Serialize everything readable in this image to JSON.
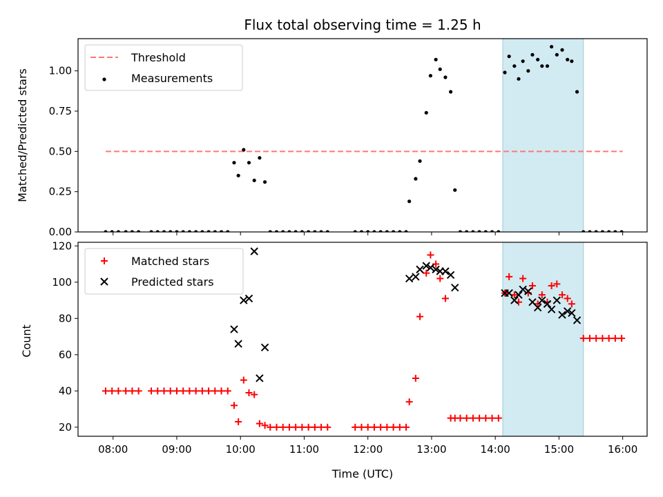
{
  "title": "Flux total observing time = 1.25 h",
  "xlabel": "Time (UTC)",
  "x_ticks": [
    "08:00",
    "09:00",
    "10:00",
    "11:00",
    "12:00",
    "13:00",
    "14:00",
    "15:00",
    "16:00"
  ],
  "colors": {
    "threshold": "#ff7777",
    "measurement": "#000000",
    "matched": "#ff0000",
    "predicted": "#000000",
    "highlight": "#add8e6"
  },
  "chart_data": [
    {
      "type": "scatter",
      "ylabel": "Matched/Predicted stars",
      "xlim": [
        "07:27",
        "16:23"
      ],
      "ylim": [
        0,
        1.2
      ],
      "y_ticks": [
        "0.00",
        "0.25",
        "0.50",
        "0.75",
        "1.00"
      ],
      "highlight_span": [
        "14:07",
        "15:23"
      ],
      "legend": {
        "position": "top-left",
        "entries": [
          "Threshold",
          "Measurements"
        ]
      },
      "series": [
        {
          "name": "Threshold",
          "kind": "dashed-line",
          "x": [
            "07:53",
            "16:00"
          ],
          "y": [
            0.5,
            0.5
          ]
        },
        {
          "name": "Measurements",
          "kind": "dots",
          "points": [
            [
              "07:53",
              0
            ],
            [
              "07:59",
              0
            ],
            [
              "08:05",
              0
            ],
            [
              "08:12",
              0
            ],
            [
              "08:18",
              0
            ],
            [
              "08:24",
              0
            ],
            [
              "08:36",
              0
            ],
            [
              "08:42",
              0
            ],
            [
              "08:48",
              0
            ],
            [
              "08:54",
              0
            ],
            [
              "09:00",
              0
            ],
            [
              "09:06",
              0
            ],
            [
              "09:12",
              0
            ],
            [
              "09:18",
              0
            ],
            [
              "09:24",
              0
            ],
            [
              "09:30",
              0
            ],
            [
              "09:36",
              0
            ],
            [
              "09:42",
              0
            ],
            [
              "09:48",
              0
            ],
            [
              "09:54",
              0.43
            ],
            [
              "09:58",
              0.35
            ],
            [
              "10:03",
              0.51
            ],
            [
              "10:08",
              0.43
            ],
            [
              "10:13",
              0.32
            ],
            [
              "10:18",
              0.46
            ],
            [
              "10:23",
              0.31
            ],
            [
              "10:28",
              0
            ],
            [
              "10:34",
              0
            ],
            [
              "10:40",
              0
            ],
            [
              "10:46",
              0
            ],
            [
              "10:52",
              0
            ],
            [
              "10:58",
              0
            ],
            [
              "11:04",
              0
            ],
            [
              "11:10",
              0
            ],
            [
              "11:16",
              0
            ],
            [
              "11:22",
              0
            ],
            [
              "11:48",
              0
            ],
            [
              "11:54",
              0
            ],
            [
              "12:00",
              0
            ],
            [
              "12:06",
              0
            ],
            [
              "12:12",
              0
            ],
            [
              "12:18",
              0
            ],
            [
              "12:24",
              0
            ],
            [
              "12:30",
              0
            ],
            [
              "12:36",
              0
            ],
            [
              "12:39",
              0.19
            ],
            [
              "12:45",
              0.33
            ],
            [
              "12:49",
              0.44
            ],
            [
              "12:55",
              0.74
            ],
            [
              "12:59",
              0.97
            ],
            [
              "13:04",
              1.07
            ],
            [
              "13:08",
              1.01
            ],
            [
              "13:13",
              0.96
            ],
            [
              "13:18",
              0.87
            ],
            [
              "13:22",
              0.26
            ],
            [
              "13:27",
              0
            ],
            [
              "13:33",
              0
            ],
            [
              "13:39",
              0
            ],
            [
              "13:45",
              0
            ],
            [
              "13:51",
              0
            ],
            [
              "13:57",
              0
            ],
            [
              "14:03",
              0
            ],
            [
              "14:09",
              0.99
            ],
            [
              "14:13",
              1.09
            ],
            [
              "14:18",
              1.03
            ],
            [
              "14:22",
              0.95
            ],
            [
              "14:26",
              1.06
            ],
            [
              "14:31",
              1.0
            ],
            [
              "14:35",
              1.1
            ],
            [
              "14:40",
              1.07
            ],
            [
              "14:44",
              1.03
            ],
            [
              "14:49",
              1.03
            ],
            [
              "14:53",
              1.15
            ],
            [
              "14:58",
              1.1
            ],
            [
              "15:03",
              1.13
            ],
            [
              "15:08",
              1.07
            ],
            [
              "15:12",
              1.06
            ],
            [
              "15:17",
              0.87
            ],
            [
              "15:23",
              0
            ],
            [
              "15:29",
              0
            ],
            [
              "15:35",
              0
            ],
            [
              "15:41",
              0
            ],
            [
              "15:47",
              0
            ],
            [
              "15:53",
              0
            ],
            [
              "15:59",
              0
            ]
          ]
        }
      ]
    },
    {
      "type": "scatter",
      "ylabel": "Count",
      "xlim": [
        "07:27",
        "16:23"
      ],
      "ylim": [
        15,
        122
      ],
      "y_ticks": [
        "20",
        "40",
        "60",
        "80",
        "100",
        "120"
      ],
      "highlight_span": [
        "14:07",
        "15:23"
      ],
      "legend": {
        "position": "top-left",
        "entries": [
          "Matched stars",
          "Predicted stars"
        ]
      },
      "series": [
        {
          "name": "Matched stars",
          "kind": "plus",
          "points": [
            [
              "07:53",
              40
            ],
            [
              "07:59",
              40
            ],
            [
              "08:05",
              40
            ],
            [
              "08:12",
              40
            ],
            [
              "08:18",
              40
            ],
            [
              "08:24",
              40
            ],
            [
              "08:36",
              40
            ],
            [
              "08:42",
              40
            ],
            [
              "08:48",
              40
            ],
            [
              "08:54",
              40
            ],
            [
              "09:00",
              40
            ],
            [
              "09:06",
              40
            ],
            [
              "09:12",
              40
            ],
            [
              "09:18",
              40
            ],
            [
              "09:24",
              40
            ],
            [
              "09:30",
              40
            ],
            [
              "09:36",
              40
            ],
            [
              "09:42",
              40
            ],
            [
              "09:48",
              40
            ],
            [
              "09:54",
              32
            ],
            [
              "09:58",
              23
            ],
            [
              "10:03",
              46
            ],
            [
              "10:08",
              39
            ],
            [
              "10:13",
              38
            ],
            [
              "10:18",
              22
            ],
            [
              "10:23",
              21
            ],
            [
              "10:28",
              20
            ],
            [
              "10:34",
              20
            ],
            [
              "10:40",
              20
            ],
            [
              "10:46",
              20
            ],
            [
              "10:52",
              20
            ],
            [
              "10:58",
              20
            ],
            [
              "11:04",
              20
            ],
            [
              "11:10",
              20
            ],
            [
              "11:16",
              20
            ],
            [
              "11:22",
              20
            ],
            [
              "11:48",
              20
            ],
            [
              "11:54",
              20
            ],
            [
              "12:00",
              20
            ],
            [
              "12:06",
              20
            ],
            [
              "12:12",
              20
            ],
            [
              "12:18",
              20
            ],
            [
              "12:24",
              20
            ],
            [
              "12:30",
              20
            ],
            [
              "12:36",
              20
            ],
            [
              "12:39",
              34
            ],
            [
              "12:45",
              47
            ],
            [
              "12:49",
              81
            ],
            [
              "12:55",
              105
            ],
            [
              "12:59",
              115
            ],
            [
              "13:04",
              110
            ],
            [
              "13:08",
              102
            ],
            [
              "13:13",
              91
            ],
            [
              "13:18",
              25
            ],
            [
              "13:22",
              25
            ],
            [
              "13:27",
              25
            ],
            [
              "13:33",
              25
            ],
            [
              "13:39",
              25
            ],
            [
              "13:45",
              25
            ],
            [
              "13:51",
              25
            ],
            [
              "13:57",
              25
            ],
            [
              "14:03",
              25
            ],
            [
              "14:09",
              94
            ],
            [
              "14:13",
              103
            ],
            [
              "14:18",
              93
            ],
            [
              "14:22",
              89
            ],
            [
              "14:26",
              102
            ],
            [
              "14:31",
              94
            ],
            [
              "14:35",
              98
            ],
            [
              "14:40",
              88
            ],
            [
              "14:44",
              93
            ],
            [
              "14:49",
              89
            ],
            [
              "14:53",
              98
            ],
            [
              "14:58",
              99
            ],
            [
              "15:03",
              93
            ],
            [
              "15:08",
              91
            ],
            [
              "15:12",
              88
            ],
            [
              "15:23",
              69
            ],
            [
              "15:29",
              69
            ],
            [
              "15:35",
              69
            ],
            [
              "15:41",
              69
            ],
            [
              "15:47",
              69
            ],
            [
              "15:53",
              69
            ],
            [
              "15:59",
              69
            ]
          ]
        },
        {
          "name": "Predicted stars",
          "kind": "cross",
          "points": [
            [
              "09:54",
              74
            ],
            [
              "09:58",
              66
            ],
            [
              "10:03",
              90
            ],
            [
              "10:08",
              91
            ],
            [
              "10:13",
              117
            ],
            [
              "10:18",
              47
            ],
            [
              "10:23",
              64
            ],
            [
              "12:39",
              102
            ],
            [
              "12:45",
              103
            ],
            [
              "12:49",
              107
            ],
            [
              "12:55",
              109
            ],
            [
              "12:59",
              108
            ],
            [
              "13:04",
              107
            ],
            [
              "13:08",
              106
            ],
            [
              "13:13",
              106
            ],
            [
              "13:18",
              104
            ],
            [
              "13:22",
              97
            ],
            [
              "14:09",
              94
            ],
            [
              "14:13",
              94
            ],
            [
              "14:18",
              90
            ],
            [
              "14:22",
              93
            ],
            [
              "14:26",
              96
            ],
            [
              "14:31",
              95
            ],
            [
              "14:35",
              89
            ],
            [
              "14:40",
              86
            ],
            [
              "14:44",
              90
            ],
            [
              "14:49",
              88
            ],
            [
              "14:53",
              85
            ],
            [
              "14:58",
              90
            ],
            [
              "15:03",
              82
            ],
            [
              "15:08",
              84
            ],
            [
              "15:12",
              83
            ],
            [
              "15:17",
              79
            ]
          ]
        }
      ]
    }
  ]
}
